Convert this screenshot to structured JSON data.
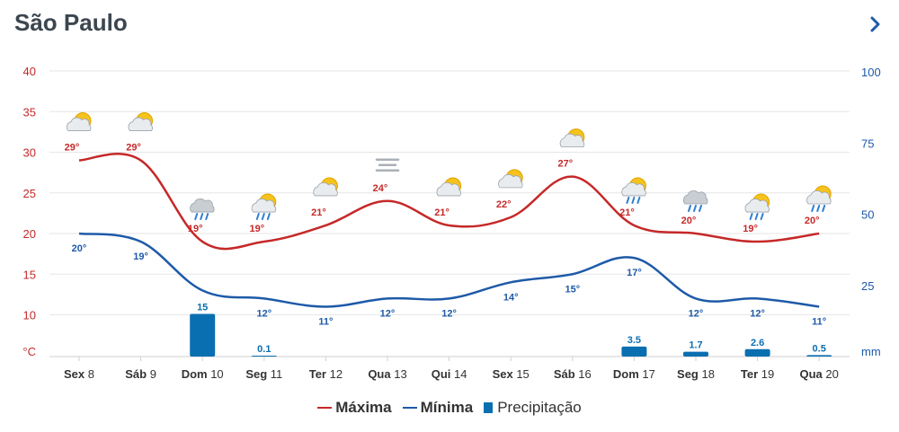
{
  "header": {
    "city": "São Paulo",
    "next_icon": "chevron-right-icon"
  },
  "colors": {
    "max": "#c62828",
    "min": "#1e5aa8",
    "precip": "#0a6fb0",
    "left_axis": "#c62828",
    "right_axis": "#1e5aa8",
    "grid": "#e6e6e6",
    "title": "#3c4650"
  },
  "chart_data": {
    "type": "line",
    "categories": [
      {
        "day": "Sex",
        "num": "8"
      },
      {
        "day": "Sáb",
        "num": "9"
      },
      {
        "day": "Dom",
        "num": "10"
      },
      {
        "day": "Seg",
        "num": "11"
      },
      {
        "day": "Ter",
        "num": "12"
      },
      {
        "day": "Qua",
        "num": "13"
      },
      {
        "day": "Qui",
        "num": "14"
      },
      {
        "day": "Sex",
        "num": "15"
      },
      {
        "day": "Sáb",
        "num": "16"
      },
      {
        "day": "Dom",
        "num": "17"
      },
      {
        "day": "Seg",
        "num": "18"
      },
      {
        "day": "Ter",
        "num": "19"
      },
      {
        "day": "Qua",
        "num": "20"
      }
    ],
    "series": [
      {
        "name": "Máxima",
        "axis": "left",
        "values": [
          29,
          29,
          19,
          19,
          21,
          24,
          21,
          22,
          27,
          21,
          20,
          19,
          20
        ]
      },
      {
        "name": "Mínima",
        "axis": "left",
        "values": [
          20,
          19,
          13,
          12,
          11,
          12,
          12,
          14,
          15,
          17,
          12,
          12,
          11
        ]
      },
      {
        "name": "Precipitação",
        "axis": "right",
        "type": "bar",
        "values": [
          null,
          null,
          15,
          0.1,
          null,
          null,
          null,
          null,
          null,
          3.5,
          1.7,
          2.6,
          0.5
        ]
      }
    ],
    "data_labels": {
      "max": [
        "29°",
        "29°",
        "19°",
        "19°",
        "21°",
        "24°",
        "21°",
        "22°",
        "27°",
        "21°",
        "20°",
        "19°",
        "20°"
      ],
      "min": [
        "20°",
        "19°",
        "",
        "12°",
        "11°",
        "12°",
        "12°",
        "14°",
        "15°",
        "17°",
        "12°",
        "12°",
        "11°"
      ],
      "precip": [
        "",
        "",
        "15",
        "0.1",
        "",
        "",
        "",
        "",
        "",
        "3.5",
        "1.7",
        "2.6",
        "0.5"
      ]
    },
    "weather_icons": [
      "sun-cloud",
      "sun-cloud",
      "rain-cloud",
      "sun-rain",
      "sun-cloud",
      "fog",
      "sun-cloud",
      "sun-cloud",
      "sun-cloud",
      "sun-rain",
      "rain-cloud",
      "sun-rain",
      "sun-rain"
    ],
    "left_axis": {
      "unit": "°C",
      "ticks": [
        "10",
        "15",
        "20",
        "25",
        "30",
        "35",
        "40"
      ],
      "range": [
        7,
        40
      ]
    },
    "right_axis": {
      "unit": "mm",
      "ticks": [
        "25",
        "50",
        "75",
        "100"
      ],
      "range": [
        0,
        100
      ]
    },
    "legend": [
      "Máxima",
      "Mínima",
      "Precipitação"
    ],
    "legend_position": "bottom-center",
    "grid": true
  }
}
